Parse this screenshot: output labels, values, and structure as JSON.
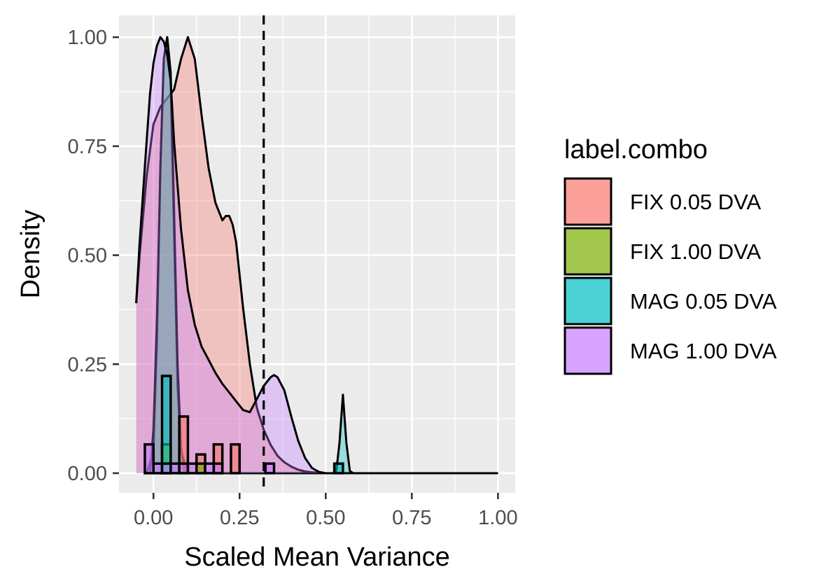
{
  "chart_data": {
    "type": "area",
    "xlabel": "Scaled Mean Variance",
    "ylabel": "Density",
    "xlim": [
      -0.1,
      1.05
    ],
    "ylim": [
      -0.045,
      1.05
    ],
    "x_ticks": [
      0.0,
      0.25,
      0.5,
      0.75,
      1.0
    ],
    "x_tick_labels": [
      "0.00",
      "0.25",
      "0.50",
      "0.75",
      "1.00"
    ],
    "y_ticks": [
      0.0,
      0.25,
      0.5,
      0.75,
      1.0
    ],
    "y_tick_labels": [
      "0.00",
      "0.25",
      "0.50",
      "0.75",
      "1.00"
    ],
    "grid": true,
    "panel_background": "#ebebeb",
    "legend_position": "right",
    "legend": {
      "title": "label.combo",
      "entries": [
        "FIX 0.05 DVA",
        "FIX 1.00 DVA",
        "MAG 0.05 DVA",
        "MAG 1.00 DVA"
      ]
    },
    "vline": {
      "x": 0.32,
      "style": "dashed"
    },
    "series": [
      {
        "name": "FIX 0.05 DVA",
        "color": "#F8766D",
        "density": {
          "x": [
            -0.05,
            -0.04,
            -0.02,
            0.0,
            0.02,
            0.04,
            0.06,
            0.08,
            0.1,
            0.12,
            0.14,
            0.16,
            0.18,
            0.2,
            0.21,
            0.22,
            0.23,
            0.24,
            0.26,
            0.28,
            0.3,
            0.32,
            0.34,
            0.36,
            0.38,
            0.4,
            0.42,
            0.44,
            0.46,
            0.48,
            0.5,
            0.52,
            0.55,
            0.6,
            0.7,
            0.8,
            0.9,
            1.0
          ],
          "y": [
            0.39,
            0.5,
            0.68,
            0.8,
            0.84,
            0.86,
            0.88,
            0.95,
            1.0,
            0.95,
            0.82,
            0.7,
            0.62,
            0.58,
            0.59,
            0.59,
            0.57,
            0.53,
            0.38,
            0.25,
            0.15,
            0.1,
            0.065,
            0.04,
            0.025,
            0.015,
            0.008,
            0.004,
            0.002,
            0.001,
            0.0,
            0.0,
            0.0,
            0.0,
            0.0,
            0.0,
            0.0,
            0.0
          ]
        },
        "histogram": [
          {
            "x0": -0.05,
            "x1": -0.025,
            "y": 0.0
          },
          {
            "x0": -0.025,
            "x1": 0.0,
            "y": 0.0
          },
          {
            "x0": 0.0,
            "x1": 0.025,
            "y": 0.0
          },
          {
            "x0": 0.025,
            "x1": 0.05,
            "y": 0.0
          },
          {
            "x0": 0.05,
            "x1": 0.075,
            "y": 0.0
          },
          {
            "x0": 0.075,
            "x1": 0.1,
            "y": 0.13
          },
          {
            "x0": 0.1,
            "x1": 0.125,
            "y": 0.0
          },
          {
            "x0": 0.125,
            "x1": 0.15,
            "y": 0.043
          },
          {
            "x0": 0.15,
            "x1": 0.175,
            "y": 0.0
          },
          {
            "x0": 0.175,
            "x1": 0.2,
            "y": 0.066
          },
          {
            "x0": 0.2,
            "x1": 0.225,
            "y": 0.0
          },
          {
            "x0": 0.225,
            "x1": 0.25,
            "y": 0.066
          }
        ]
      },
      {
        "name": "FIX 1.00 DVA",
        "color": "#7CAE00",
        "density": {
          "x": [
            -0.02,
            0.0,
            0.01,
            0.02,
            0.03,
            0.04,
            0.05,
            0.06,
            0.07,
            0.08,
            0.1
          ],
          "y": [
            0.0,
            0.05,
            0.3,
            0.7,
            0.95,
            1.0,
            0.9,
            0.55,
            0.2,
            0.05,
            0.0
          ]
        },
        "histogram": [
          {
            "x0": 0.025,
            "x1": 0.05,
            "y": 0.066
          },
          {
            "x0": 0.125,
            "x1": 0.15,
            "y": 0.022
          }
        ]
      },
      {
        "name": "MAG 0.05 DVA",
        "color": "#00BFC4",
        "density": {
          "x": [
            -0.01,
            0.0,
            0.01,
            0.02,
            0.03,
            0.04,
            0.05,
            0.06,
            0.07,
            0.08,
            0.09,
            0.5,
            0.53,
            0.54,
            0.55,
            0.56,
            0.57,
            0.58,
            0.6,
            1.0
          ],
          "y": [
            0.0,
            0.1,
            0.35,
            0.7,
            0.95,
            1.0,
            0.92,
            0.6,
            0.25,
            0.06,
            0.0,
            0.0,
            0.0,
            0.07,
            0.18,
            0.07,
            0.005,
            0.0,
            0.0,
            0.0
          ]
        },
        "histogram": [
          {
            "x0": 0.025,
            "x1": 0.05,
            "y": 0.223
          },
          {
            "x0": 0.525,
            "x1": 0.55,
            "y": 0.022
          }
        ]
      },
      {
        "name": "MAG 1.00 DVA",
        "color": "#C77CFF",
        "density": {
          "x": [
            -0.05,
            -0.04,
            -0.02,
            -0.01,
            0.0,
            0.01,
            0.02,
            0.03,
            0.04,
            0.05,
            0.06,
            0.08,
            0.1,
            0.12,
            0.14,
            0.16,
            0.18,
            0.2,
            0.22,
            0.24,
            0.26,
            0.28,
            0.3,
            0.32,
            0.34,
            0.35,
            0.36,
            0.38,
            0.4,
            0.42,
            0.44,
            0.46,
            0.48,
            0.5,
            0.55,
            0.6,
            0.8,
            1.0
          ],
          "y": [
            0.39,
            0.53,
            0.76,
            0.87,
            0.94,
            0.98,
            1.0,
            0.99,
            0.96,
            0.9,
            0.76,
            0.56,
            0.42,
            0.34,
            0.29,
            0.26,
            0.23,
            0.205,
            0.185,
            0.165,
            0.145,
            0.14,
            0.17,
            0.2,
            0.22,
            0.225,
            0.22,
            0.19,
            0.13,
            0.075,
            0.035,
            0.012,
            0.003,
            0.0,
            0.0,
            0.0,
            0.0,
            0.0
          ]
        },
        "histogram": [
          {
            "x0": -0.025,
            "x1": 0.0,
            "y": 0.066
          },
          {
            "x0": 0.0,
            "x1": 0.025,
            "y": 0.022
          },
          {
            "x0": 0.025,
            "x1": 0.05,
            "y": 0.022
          },
          {
            "x0": 0.05,
            "x1": 0.075,
            "y": 0.022
          },
          {
            "x0": 0.075,
            "x1": 0.1,
            "y": 0.022
          },
          {
            "x0": 0.1,
            "x1": 0.125,
            "y": 0.022
          },
          {
            "x0": 0.15,
            "x1": 0.175,
            "y": 0.022
          },
          {
            "x0": 0.175,
            "x1": 0.2,
            "y": 0.022
          },
          {
            "x0": 0.325,
            "x1": 0.35,
            "y": 0.022
          }
        ]
      }
    ]
  }
}
